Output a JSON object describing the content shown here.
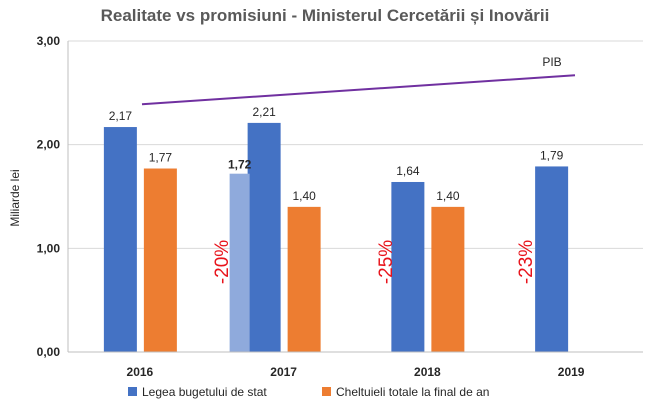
{
  "chart_data": {
    "type": "bar",
    "title": "Realitate vs promisiuni - Ministerul Cercetării și Inovării",
    "ylabel": "Miliarde lei",
    "xlabel": "",
    "ylim": [
      0,
      3
    ],
    "yticks": [
      "0,00",
      "1,00",
      "2,00",
      "3,00"
    ],
    "categories": [
      "2016",
      "2017",
      "2018",
      "2019"
    ],
    "series": [
      {
        "name": "Legea bugetului de stat",
        "color": "#4472c4",
        "values": [
          2.17,
          2.21,
          1.64,
          1.79
        ],
        "labels": [
          "2,17",
          "2,21",
          "1,64",
          "1,79"
        ]
      },
      {
        "name": "Cheltuieli totale la final de an",
        "color": "#ed7d31",
        "values": [
          1.77,
          1.4,
          1.4,
          null
        ],
        "labels": [
          "1,77",
          "1,40",
          "1,40",
          ""
        ]
      }
    ],
    "extra_bar": {
      "category": "2017",
      "value": 1.72,
      "label": "1,72",
      "color": "#8faadc"
    },
    "reference_line": {
      "label": "PIB",
      "from": 2.39,
      "to": 2.67,
      "color": "#7030a0"
    },
    "annotations": [
      {
        "category": "2017",
        "text": "-20%"
      },
      {
        "category": "2018",
        "text": "-25%"
      },
      {
        "category": "2019",
        "text": "-23%"
      }
    ],
    "grid": "horizontal",
    "legend_position": "bottom"
  }
}
